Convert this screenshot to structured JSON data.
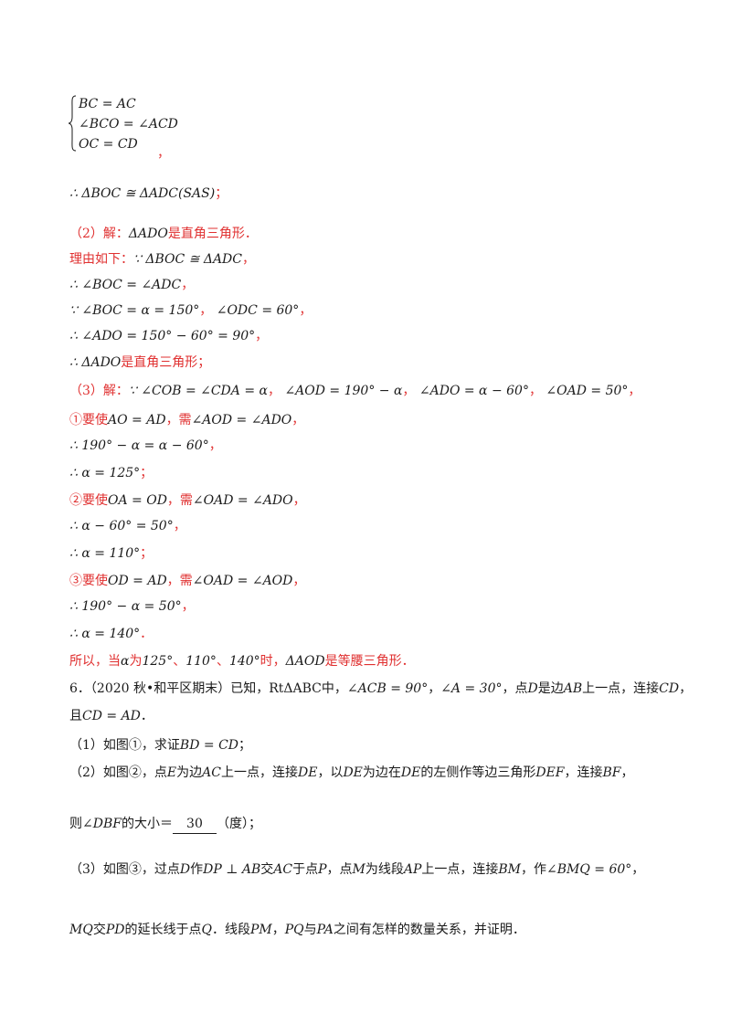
{
  "sys": {
    "l1": "BC = AC",
    "l2": "∠BCO = ∠ACD",
    "l3": "OC = CD",
    "tail": "，"
  },
  "lines": {
    "conc1": "∴ ΔBOC ≅ ΔADC(SAS)",
    "conc1_tail": "；",
    "p2_head": "（2）解：",
    "p2_math": "ΔADO",
    "p2_text": "是直角三角形．",
    "reason_head": "理由如下：",
    "reason_math": "∵ ΔBOC ≅ ΔADC",
    "reason_tail": "，",
    "l_boc": "∴ ∠BOC = ∠ADC",
    "l_boc_tail": "，",
    "l_alpha": "∵ ∠BOC = α = 150°",
    "l_alpha_sep": "，",
    "l_odc": "∠ODC = 60°",
    "l_odc_tail": "，",
    "l_ado": "∴ ∠ADO = 150° − 60° = 90°",
    "l_ado_tail": "，",
    "l_right": "∴ ΔADO",
    "l_right_text": "是直角三角形；",
    "p3_head": "（3）解：",
    "p3_m1": "∵ ∠COB = ∠CDA = α",
    "p3_s1": "，",
    "p3_m2": "∠AOD = 190° − α",
    "p3_s2": "，",
    "p3_m3": "∠ADO = α − 60°",
    "p3_s3": "，",
    "p3_m4": "∠OAD = 50°",
    "p3_s4": "，",
    "c1_head": "①要使",
    "c1_m1": "AO = AD",
    "c1_mid": "，需",
    "c1_m2": "∠AOD = ∠ADO",
    "c1_tail": "，",
    "c1_eq": "∴ 190° − α = α − 60°",
    "c1_eq_tail": "，",
    "c1_res": "∴ α = 125°",
    "c1_res_tail": "；",
    "c2_head": "②要使",
    "c2_m1": "OA = OD",
    "c2_mid": "，需",
    "c2_m2": "∠OAD = ∠ADO",
    "c2_tail": "，",
    "c2_eq": "∴ α − 60° = 50°",
    "c2_eq_tail": "，",
    "c2_res": "∴ α = 110°",
    "c2_res_tail": "；",
    "c3_head": "③要使",
    "c3_m1": "OD = AD",
    "c3_mid": "，需",
    "c3_m2": "∠OAD = ∠AOD",
    "c3_tail": "，",
    "c3_eq": "∴ 190° − α = 50°",
    "c3_eq_tail": "，",
    "c3_res": "∴ α = 140°",
    "c3_res_tail": "．",
    "sum_a": "所以，当",
    "sum_b": "α",
    "sum_c": "为",
    "sum_d": "125°",
    "sum_e": "、",
    "sum_f": "110°",
    "sum_g": "、",
    "sum_h": "140°",
    "sum_i": "时，",
    "sum_j": "ΔAOD",
    "sum_k": "是等腰三角形．"
  },
  "q6": {
    "l1_a": "6．（2020 秋•和平区期末）已知，",
    "l1_b": "RtΔABC",
    "l1_c": "中，",
    "l1_d": "∠ACB = 90°",
    "l1_e": "，",
    "l1_f": "∠A = 30°",
    "l1_g": "，点",
    "l1_h": "D",
    "l1_i": "是边",
    "l1_j": "AB",
    "l1_k": "上一点，连接",
    "l1_l": "CD",
    "l1_m": "，",
    "l2_a": "且",
    "l2_b": "CD = AD",
    "l2_c": "．",
    "s1_a": "（1）如图①，求证",
    "s1_b": "BD = CD",
    "s1_c": "；",
    "s2_a": "（2）如图②，点",
    "s2_b": "E",
    "s2_c": "为边",
    "s2_d": "AC",
    "s2_e": "上一点，连接",
    "s2_f": "DE",
    "s2_g": "，以",
    "s2_h": "DE",
    "s2_i": "为边在",
    "s2_j": "DE",
    "s2_k": "的左侧作等边三角形",
    "s2_l": "DEF",
    "s2_m": "，连接",
    "s2_n": "BF",
    "s2_o": "，",
    "s2b_a": "则",
    "s2b_b": "∠DBF",
    "s2b_c": "的大小＝",
    "s2b_ans": "30",
    "s2b_d": "（度）；",
    "s3_a": "（3）如图③，过点",
    "s3_b": "D",
    "s3_c": "作",
    "s3_d": "DP ⊥ AB",
    "s3_e": "交",
    "s3_f": "AC",
    "s3_g": "于点",
    "s3_h": "P",
    "s3_i": "，点",
    "s3_j": "M",
    "s3_k": "为线段",
    "s3_l": "AP",
    "s3_m": "上一点，连接",
    "s3_n": "BM",
    "s3_o": "，作",
    "s3_p": "∠BMQ = 60°",
    "s3_q": "，",
    "s3b_a": "MQ",
    "s3b_b": "交",
    "s3b_c": "PD",
    "s3b_d": "的延长线于点",
    "s3b_e": "Q",
    "s3b_f": "．线段",
    "s3b_g": "PM",
    "s3b_h": "，",
    "s3b_i": "PQ",
    "s3b_j": "与",
    "s3b_k": "PA",
    "s3b_l": "之间有怎样的数量关系，并证明．"
  }
}
